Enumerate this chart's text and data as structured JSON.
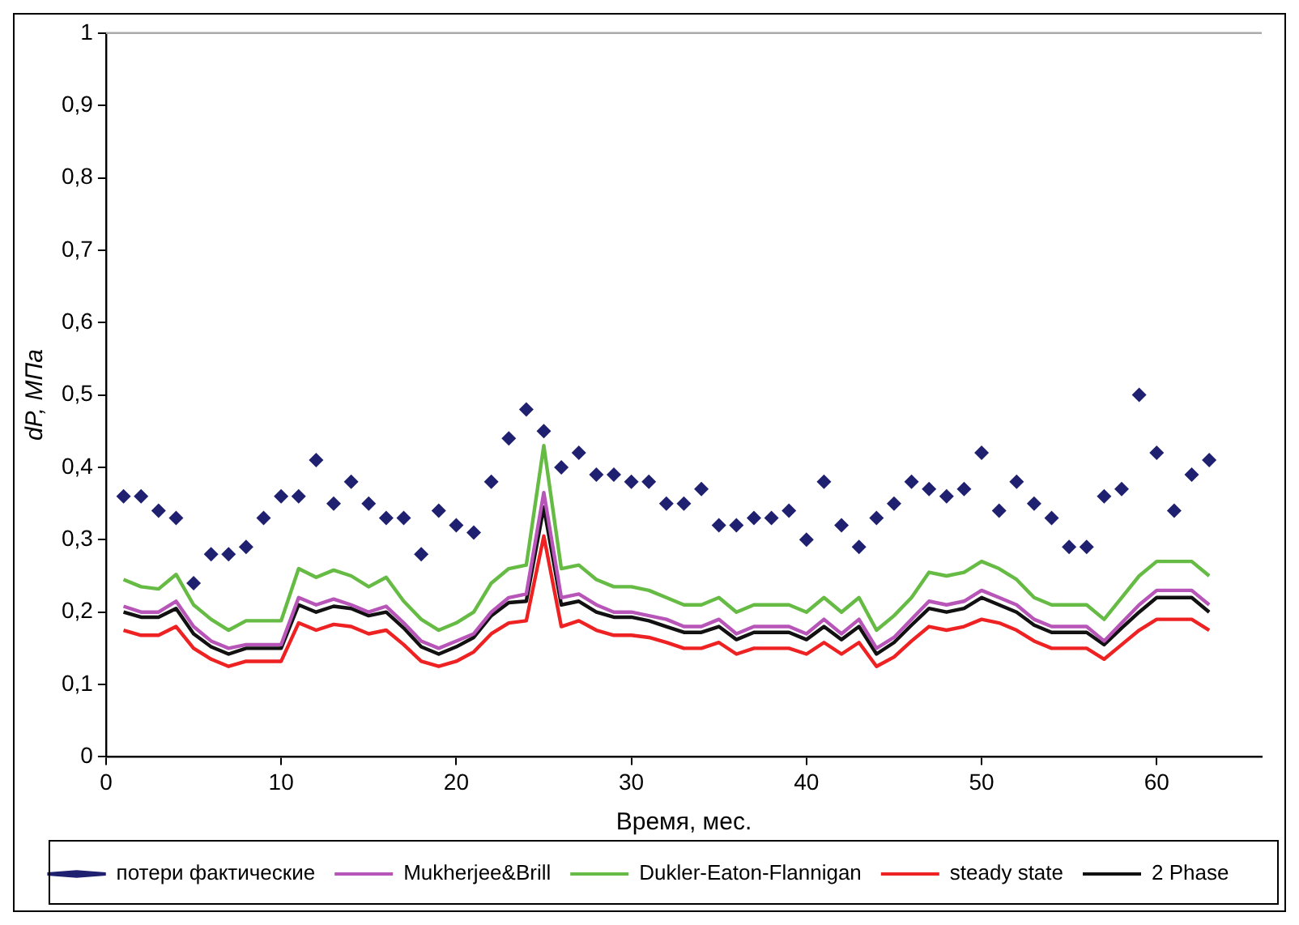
{
  "chart_data": {
    "type": "line",
    "xlabel": "Время, мес.",
    "ylabel": "dP, МПа",
    "x": [
      1,
      2,
      3,
      4,
      5,
      6,
      7,
      8,
      9,
      10,
      11,
      12,
      13,
      14,
      15,
      16,
      17,
      18,
      19,
      20,
      21,
      22,
      23,
      24,
      25,
      26,
      27,
      28,
      29,
      30,
      31,
      32,
      33,
      34,
      35,
      36,
      37,
      38,
      39,
      40,
      41,
      42,
      43,
      44,
      45,
      46,
      47,
      48,
      49,
      50,
      51,
      52,
      53,
      54,
      55,
      56,
      57,
      58,
      59,
      60,
      61,
      62,
      63
    ],
    "series": [
      {
        "name": "потери фактические",
        "type": "scatter",
        "marker": "diamond",
        "color": "#1f2070",
        "values": [
          0.36,
          0.36,
          0.34,
          0.33,
          0.24,
          0.28,
          0.28,
          0.29,
          0.33,
          0.36,
          0.36,
          0.41,
          0.35,
          0.38,
          0.35,
          0.33,
          0.33,
          0.28,
          0.34,
          0.32,
          0.31,
          0.38,
          0.44,
          0.48,
          0.45,
          0.4,
          0.42,
          0.39,
          0.39,
          0.38,
          0.38,
          0.35,
          0.35,
          0.37,
          0.32,
          0.32,
          0.33,
          0.33,
          0.34,
          0.3,
          0.38,
          0.32,
          0.29,
          0.33,
          0.35,
          0.38,
          0.37,
          0.36,
          0.37,
          0.42,
          0.34,
          0.38,
          0.35,
          0.33,
          0.29,
          0.29,
          0.36,
          0.37,
          0.5,
          0.42,
          0.34,
          0.39,
          0.41
        ]
      },
      {
        "name": "Mukherjee&Brill",
        "marker": "none",
        "color": "#b855b8",
        "values": [
          0.208,
          0.2,
          0.2,
          0.215,
          0.18,
          0.16,
          0.15,
          0.155,
          0.155,
          0.155,
          0.22,
          0.21,
          0.218,
          0.21,
          0.2,
          0.208,
          0.185,
          0.16,
          0.15,
          0.16,
          0.17,
          0.2,
          0.22,
          0.225,
          0.365,
          0.22,
          0.225,
          0.21,
          0.2,
          0.2,
          0.195,
          0.19,
          0.18,
          0.18,
          0.19,
          0.17,
          0.18,
          0.18,
          0.18,
          0.17,
          0.19,
          0.17,
          0.19,
          0.15,
          0.165,
          0.19,
          0.215,
          0.21,
          0.215,
          0.23,
          0.22,
          0.21,
          0.19,
          0.18,
          0.18,
          0.18,
          0.16,
          0.185,
          0.21,
          0.23,
          0.23,
          0.23,
          0.21
        ]
      },
      {
        "name": "Dukler-Eaton-Flannigan",
        "marker": "none",
        "color": "#66bb44",
        "values": [
          0.245,
          0.235,
          0.232,
          0.252,
          0.21,
          0.19,
          0.175,
          0.188,
          0.188,
          0.188,
          0.26,
          0.248,
          0.258,
          0.25,
          0.235,
          0.248,
          0.215,
          0.19,
          0.175,
          0.185,
          0.2,
          0.24,
          0.26,
          0.265,
          0.43,
          0.26,
          0.265,
          0.245,
          0.235,
          0.235,
          0.23,
          0.22,
          0.21,
          0.21,
          0.22,
          0.2,
          0.21,
          0.21,
          0.21,
          0.2,
          0.22,
          0.2,
          0.22,
          0.175,
          0.195,
          0.22,
          0.255,
          0.25,
          0.255,
          0.27,
          0.26,
          0.245,
          0.22,
          0.21,
          0.21,
          0.21,
          0.19,
          0.22,
          0.25,
          0.27,
          0.27,
          0.27,
          0.25
        ]
      },
      {
        "name": "steady state",
        "marker": "none",
        "color": "#ee2222",
        "values": [
          0.175,
          0.168,
          0.168,
          0.18,
          0.15,
          0.135,
          0.125,
          0.132,
          0.132,
          0.132,
          0.185,
          0.175,
          0.183,
          0.18,
          0.17,
          0.175,
          0.155,
          0.132,
          0.125,
          0.132,
          0.145,
          0.17,
          0.185,
          0.188,
          0.305,
          0.18,
          0.188,
          0.175,
          0.168,
          0.168,
          0.165,
          0.158,
          0.15,
          0.15,
          0.158,
          0.142,
          0.15,
          0.15,
          0.15,
          0.142,
          0.158,
          0.142,
          0.158,
          0.125,
          0.138,
          0.16,
          0.18,
          0.175,
          0.18,
          0.19,
          0.185,
          0.175,
          0.16,
          0.15,
          0.15,
          0.15,
          0.135,
          0.155,
          0.175,
          0.19,
          0.19,
          0.19,
          0.175
        ]
      },
      {
        "name": "2 Phase",
        "marker": "none",
        "color": "#111111",
        "values": [
          0.2,
          0.193,
          0.193,
          0.205,
          0.17,
          0.152,
          0.142,
          0.15,
          0.15,
          0.15,
          0.21,
          0.2,
          0.208,
          0.205,
          0.195,
          0.2,
          0.178,
          0.152,
          0.142,
          0.152,
          0.165,
          0.195,
          0.213,
          0.215,
          0.345,
          0.21,
          0.215,
          0.2,
          0.193,
          0.193,
          0.188,
          0.18,
          0.172,
          0.172,
          0.18,
          0.162,
          0.172,
          0.172,
          0.172,
          0.162,
          0.18,
          0.162,
          0.18,
          0.142,
          0.158,
          0.182,
          0.205,
          0.2,
          0.205,
          0.22,
          0.21,
          0.2,
          0.182,
          0.172,
          0.172,
          0.172,
          0.155,
          0.178,
          0.2,
          0.22,
          0.22,
          0.22,
          0.2
        ]
      }
    ],
    "xlim": [
      0,
      66
    ],
    "xticks": [
      0,
      10,
      20,
      30,
      40,
      50,
      60
    ],
    "ylim": [
      0,
      1
    ],
    "yticks": [
      {
        "value": 0,
        "label": "0"
      },
      {
        "value": 0.1,
        "label": "0,1"
      },
      {
        "value": 0.2,
        "label": "0,2"
      },
      {
        "value": 0.3,
        "label": "0,3"
      },
      {
        "value": 0.4,
        "label": "0,4"
      },
      {
        "value": 0.5,
        "label": "0,5"
      },
      {
        "value": 0.6,
        "label": "0,6"
      },
      {
        "value": 0.7,
        "label": "0,7"
      },
      {
        "value": 0.8,
        "label": "0,8"
      },
      {
        "value": 0.9,
        "label": "0,9"
      },
      {
        "value": 1,
        "label": "1"
      }
    ],
    "grid": false,
    "legend": "bottom"
  }
}
